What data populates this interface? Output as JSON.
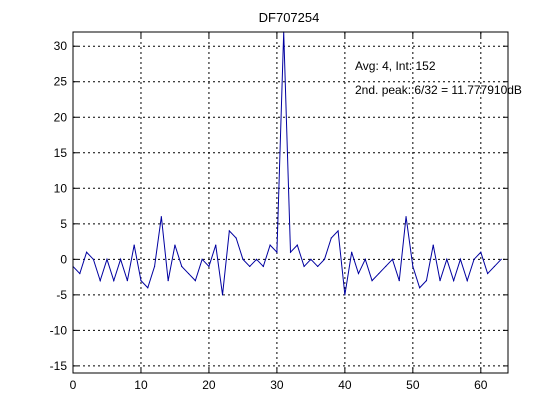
{
  "chart_data": {
    "type": "line",
    "title": "DF707254",
    "xlabel": "",
    "ylabel": "",
    "xlim": [
      0,
      64
    ],
    "ylim": [
      -16,
      32
    ],
    "xticks": [
      0,
      10,
      20,
      30,
      40,
      50,
      60
    ],
    "yticks": [
      -15,
      -10,
      -5,
      0,
      5,
      10,
      15,
      20,
      25,
      30
    ],
    "grid": true,
    "series": [
      {
        "color": "#0000a0",
        "x": [
          0,
          1,
          2,
          3,
          4,
          5,
          6,
          7,
          8,
          9,
          10,
          11,
          12,
          13,
          14,
          15,
          16,
          17,
          18,
          19,
          20,
          21,
          22,
          23,
          24,
          25,
          26,
          27,
          28,
          29,
          30,
          31,
          32,
          33,
          34,
          35,
          36,
          37,
          38,
          39,
          40,
          41,
          42,
          43,
          44,
          45,
          46,
          47,
          48,
          49,
          50,
          51,
          52,
          53,
          54,
          55,
          56,
          57,
          58,
          59,
          60,
          61,
          62,
          63
        ],
        "y": [
          -1,
          -2,
          1,
          0,
          -3,
          0,
          -3,
          0,
          -3,
          2,
          -3,
          -4,
          -1,
          6,
          -3,
          2,
          -1,
          -2,
          -3,
          0,
          -1,
          2,
          -5,
          4,
          3,
          0,
          -1,
          0,
          -1,
          2,
          1,
          32,
          1,
          2,
          -1,
          0,
          -1,
          0,
          3,
          4,
          -5,
          1,
          -2,
          0,
          -3,
          -2,
          -1,
          0,
          -3,
          6,
          -1,
          -4,
          -3,
          2,
          -3,
          0,
          -3,
          0,
          -3,
          0,
          1,
          -2,
          -1,
          0
        ]
      }
    ],
    "annotations": [
      "Avg: 4, Int: 152",
      "2nd. peak: 6/32 = 11.777910dB"
    ]
  }
}
